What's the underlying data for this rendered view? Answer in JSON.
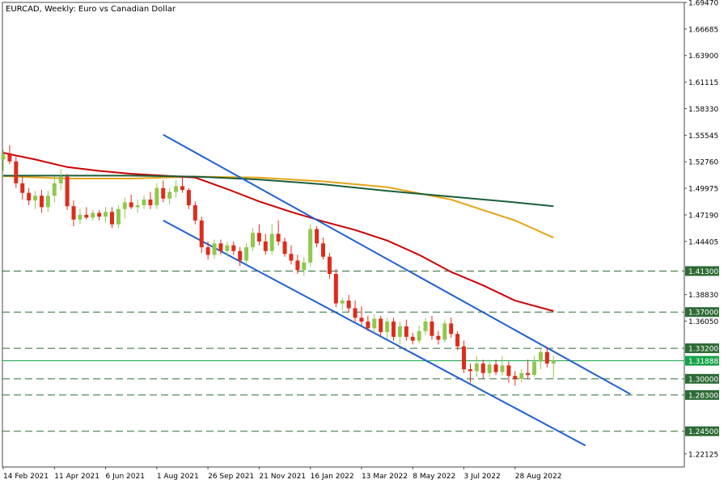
{
  "chart_data": {
    "type": "candlestick",
    "symbol": "EURCAD",
    "timeframe": "Weekly",
    "title": "EURCAD, Weekly:  Euro vs Canadian Dollar",
    "ylim": [
      1.2075,
      1.6947
    ],
    "y_ticks": [
      "1.69470",
      "1.66685",
      "1.63900",
      "1.61115",
      "1.58330",
      "1.55545",
      "1.52760",
      "1.49975",
      "1.47190",
      "1.44405",
      "1.41300",
      "1.38830",
      "1.37000",
      "1.36050",
      "1.33200",
      "1.31888",
      "1.30000",
      "1.28300",
      "1.24500",
      "1.22125"
    ],
    "x_labels": [
      {
        "label": "14 Feb 2021",
        "idx": 0
      },
      {
        "label": "11 Apr 2021",
        "idx": 8
      },
      {
        "label": "6 Jun 2021",
        "idx": 16
      },
      {
        "label": "1 Aug 2021",
        "idx": 24
      },
      {
        "label": "26 Sep 2021",
        "idx": 32
      },
      {
        "label": "21 Nov 2021",
        "idx": 40
      },
      {
        "label": "16 Jan 2022",
        "idx": 48
      },
      {
        "label": "13 Mar 2022",
        "idx": 56
      },
      {
        "label": "8 May 2022",
        "idx": 64
      },
      {
        "label": "3 Jul 2022",
        "idx": 72
      },
      {
        "label": "28 Aug 2022",
        "idx": 80
      }
    ],
    "candles": [
      [
        1.53,
        1.54,
        1.518,
        1.535
      ],
      [
        1.535,
        1.545,
        1.525,
        1.528
      ],
      [
        1.528,
        1.535,
        1.5,
        1.505
      ],
      [
        1.505,
        1.512,
        1.488,
        1.495
      ],
      [
        1.495,
        1.5,
        1.482,
        1.487
      ],
      [
        1.487,
        1.497,
        1.478,
        1.492
      ],
      [
        1.492,
        1.498,
        1.474,
        1.48
      ],
      [
        1.48,
        1.497,
        1.475,
        1.492
      ],
      [
        1.492,
        1.512,
        1.485,
        1.505
      ],
      [
        1.505,
        1.52,
        1.498,
        1.512
      ],
      [
        1.512,
        1.515,
        1.477,
        1.481
      ],
      [
        1.481,
        1.487,
        1.46,
        1.467
      ],
      [
        1.467,
        1.478,
        1.462,
        1.472
      ],
      [
        1.472,
        1.48,
        1.467,
        1.469
      ],
      [
        1.469,
        1.477,
        1.466,
        1.474
      ],
      [
        1.474,
        1.477,
        1.466,
        1.47
      ],
      [
        1.47,
        1.48,
        1.464,
        1.475
      ],
      [
        1.475,
        1.48,
        1.458,
        1.462
      ],
      [
        1.462,
        1.482,
        1.458,
        1.478
      ],
      [
        1.478,
        1.49,
        1.468,
        1.485
      ],
      [
        1.485,
        1.493,
        1.478,
        1.48
      ],
      [
        1.48,
        1.488,
        1.474,
        1.482
      ],
      [
        1.482,
        1.492,
        1.478,
        1.488
      ],
      [
        1.488,
        1.496,
        1.478,
        1.482
      ],
      [
        1.482,
        1.505,
        1.478,
        1.5
      ],
      [
        1.5,
        1.508,
        1.485,
        1.489
      ],
      [
        1.489,
        1.5,
        1.483,
        1.496
      ],
      [
        1.496,
        1.508,
        1.49,
        1.502
      ],
      [
        1.502,
        1.512,
        1.495,
        1.498
      ],
      [
        1.498,
        1.5,
        1.478,
        1.482
      ],
      [
        1.482,
        1.486,
        1.462,
        1.466
      ],
      [
        1.466,
        1.47,
        1.432,
        1.438
      ],
      [
        1.438,
        1.444,
        1.425,
        1.43
      ],
      [
        1.43,
        1.446,
        1.426,
        1.442
      ],
      [
        1.442,
        1.446,
        1.43,
        1.434
      ],
      [
        1.434,
        1.444,
        1.428,
        1.44
      ],
      [
        1.44,
        1.444,
        1.43,
        1.434
      ],
      [
        1.434,
        1.438,
        1.418,
        1.424
      ],
      [
        1.424,
        1.442,
        1.42,
        1.438
      ],
      [
        1.438,
        1.458,
        1.434,
        1.453
      ],
      [
        1.453,
        1.462,
        1.44,
        1.444
      ],
      [
        1.444,
        1.452,
        1.43,
        1.434
      ],
      [
        1.434,
        1.462,
        1.43,
        1.452
      ],
      [
        1.452,
        1.466,
        1.44,
        1.444
      ],
      [
        1.444,
        1.448,
        1.428,
        1.431
      ],
      [
        1.431,
        1.44,
        1.42,
        1.424
      ],
      [
        1.424,
        1.43,
        1.41,
        1.414
      ],
      [
        1.414,
        1.428,
        1.408,
        1.422
      ],
      [
        1.422,
        1.462,
        1.418,
        1.457
      ],
      [
        1.457,
        1.46,
        1.438,
        1.442
      ],
      [
        1.442,
        1.448,
        1.425,
        1.428
      ],
      [
        1.428,
        1.432,
        1.405,
        1.41
      ],
      [
        1.41,
        1.415,
        1.375,
        1.379
      ],
      [
        1.379,
        1.385,
        1.372,
        1.382
      ],
      [
        1.382,
        1.388,
        1.37,
        1.374
      ],
      [
        1.374,
        1.382,
        1.36,
        1.364
      ],
      [
        1.364,
        1.376,
        1.356,
        1.36
      ],
      [
        1.36,
        1.366,
        1.35,
        1.353
      ],
      [
        1.353,
        1.368,
        1.348,
        1.363
      ],
      [
        1.363,
        1.366,
        1.345,
        1.349
      ],
      [
        1.349,
        1.364,
        1.342,
        1.36
      ],
      [
        1.36,
        1.364,
        1.34,
        1.344
      ],
      [
        1.344,
        1.36,
        1.336,
        1.355
      ],
      [
        1.355,
        1.362,
        1.34,
        1.344
      ],
      [
        1.344,
        1.348,
        1.336,
        1.34
      ],
      [
        1.34,
        1.356,
        1.337,
        1.35
      ],
      [
        1.35,
        1.364,
        1.346,
        1.36
      ],
      [
        1.36,
        1.366,
        1.341,
        1.345
      ],
      [
        1.345,
        1.35,
        1.336,
        1.341
      ],
      [
        1.341,
        1.362,
        1.338,
        1.358
      ],
      [
        1.358,
        1.364,
        1.343,
        1.347
      ],
      [
        1.347,
        1.35,
        1.33,
        1.334
      ],
      [
        1.334,
        1.34,
        1.306,
        1.31
      ],
      [
        1.31,
        1.316,
        1.296,
        1.308
      ],
      [
        1.308,
        1.324,
        1.302,
        1.316
      ],
      [
        1.316,
        1.32,
        1.3,
        1.306
      ],
      [
        1.306,
        1.32,
        1.302,
        1.315
      ],
      [
        1.315,
        1.32,
        1.304,
        1.307
      ],
      [
        1.307,
        1.324,
        1.303,
        1.314
      ],
      [
        1.314,
        1.318,
        1.296,
        1.303
      ],
      [
        1.303,
        1.308,
        1.293,
        1.3
      ],
      [
        1.3,
        1.31,
        1.296,
        1.306
      ],
      [
        1.306,
        1.32,
        1.3,
        1.304
      ],
      [
        1.304,
        1.324,
        1.302,
        1.318
      ],
      [
        1.318,
        1.332,
        1.31,
        1.328
      ],
      [
        1.328,
        1.333,
        1.312,
        1.316
      ],
      [
        1.316,
        1.324,
        1.3,
        1.319
      ]
    ],
    "moving_averages": [
      {
        "color": "#e8a317",
        "values": [
          [
            0,
            1.5125
          ],
          [
            10,
            1.51
          ],
          [
            20,
            1.51
          ],
          [
            30,
            1.512
          ],
          [
            40,
            1.511
          ],
          [
            50,
            1.507
          ],
          [
            60,
            1.501
          ],
          [
            70,
            1.488
          ],
          [
            80,
            1.466
          ],
          [
            86,
            1.448
          ]
        ]
      },
      {
        "color": "#cc0000",
        "values": [
          [
            0,
            1.537
          ],
          [
            5,
            1.53
          ],
          [
            10,
            1.522
          ],
          [
            15,
            1.518
          ],
          [
            20,
            1.515
          ],
          [
            25,
            1.513
          ],
          [
            30,
            1.511
          ],
          [
            35,
            1.499
          ],
          [
            40,
            1.486
          ],
          [
            45,
            1.475
          ],
          [
            50,
            1.465
          ],
          [
            55,
            1.456
          ],
          [
            60,
            1.445
          ],
          [
            65,
            1.43
          ],
          [
            70,
            1.412
          ],
          [
            75,
            1.398
          ],
          [
            80,
            1.382
          ],
          [
            86,
            1.371
          ]
        ]
      },
      {
        "color": "#1b5e3b",
        "values": [
          [
            0,
            1.513
          ],
          [
            20,
            1.513
          ],
          [
            30,
            1.512
          ],
          [
            40,
            1.509
          ],
          [
            50,
            1.504
          ],
          [
            60,
            1.497
          ],
          [
            70,
            1.491
          ],
          [
            80,
            1.485
          ],
          [
            86,
            1.481
          ]
        ]
      }
    ],
    "channel_lines": [
      {
        "color": "#2060d0",
        "from": [
          25,
          1.556
        ],
        "to": [
          98,
          1.284
        ]
      },
      {
        "color": "#2060d0",
        "from": [
          25,
          1.466
        ],
        "to": [
          91,
          1.23
        ]
      }
    ],
    "horizontal_levels": [
      {
        "value": 1.413,
        "label": "1.41300",
        "style": "dashed",
        "color": "#2e6b36"
      },
      {
        "value": 1.37,
        "label": "1.37000",
        "style": "dashed",
        "color": "#2e6b36"
      },
      {
        "value": 1.332,
        "label": "1.33200",
        "style": "dashed",
        "color": "#2e6b36"
      },
      {
        "value": 1.3,
        "label": "1.30000",
        "style": "dashed",
        "color": "#2e6b36"
      },
      {
        "value": 1.283,
        "label": "1.28300",
        "style": "dashed",
        "color": "#2e6b36"
      },
      {
        "value": 1.245,
        "label": "1.24500",
        "style": "dashed",
        "color": "#2e6b36"
      }
    ],
    "current_price": {
      "value": 1.31888,
      "label": "1.31888",
      "color": "#16a34a"
    },
    "colors": {
      "bull": "#90c850",
      "bear": "#dd2c1c",
      "axis": "#4a4a4a",
      "background": "#ffffff"
    },
    "grid": false
  }
}
